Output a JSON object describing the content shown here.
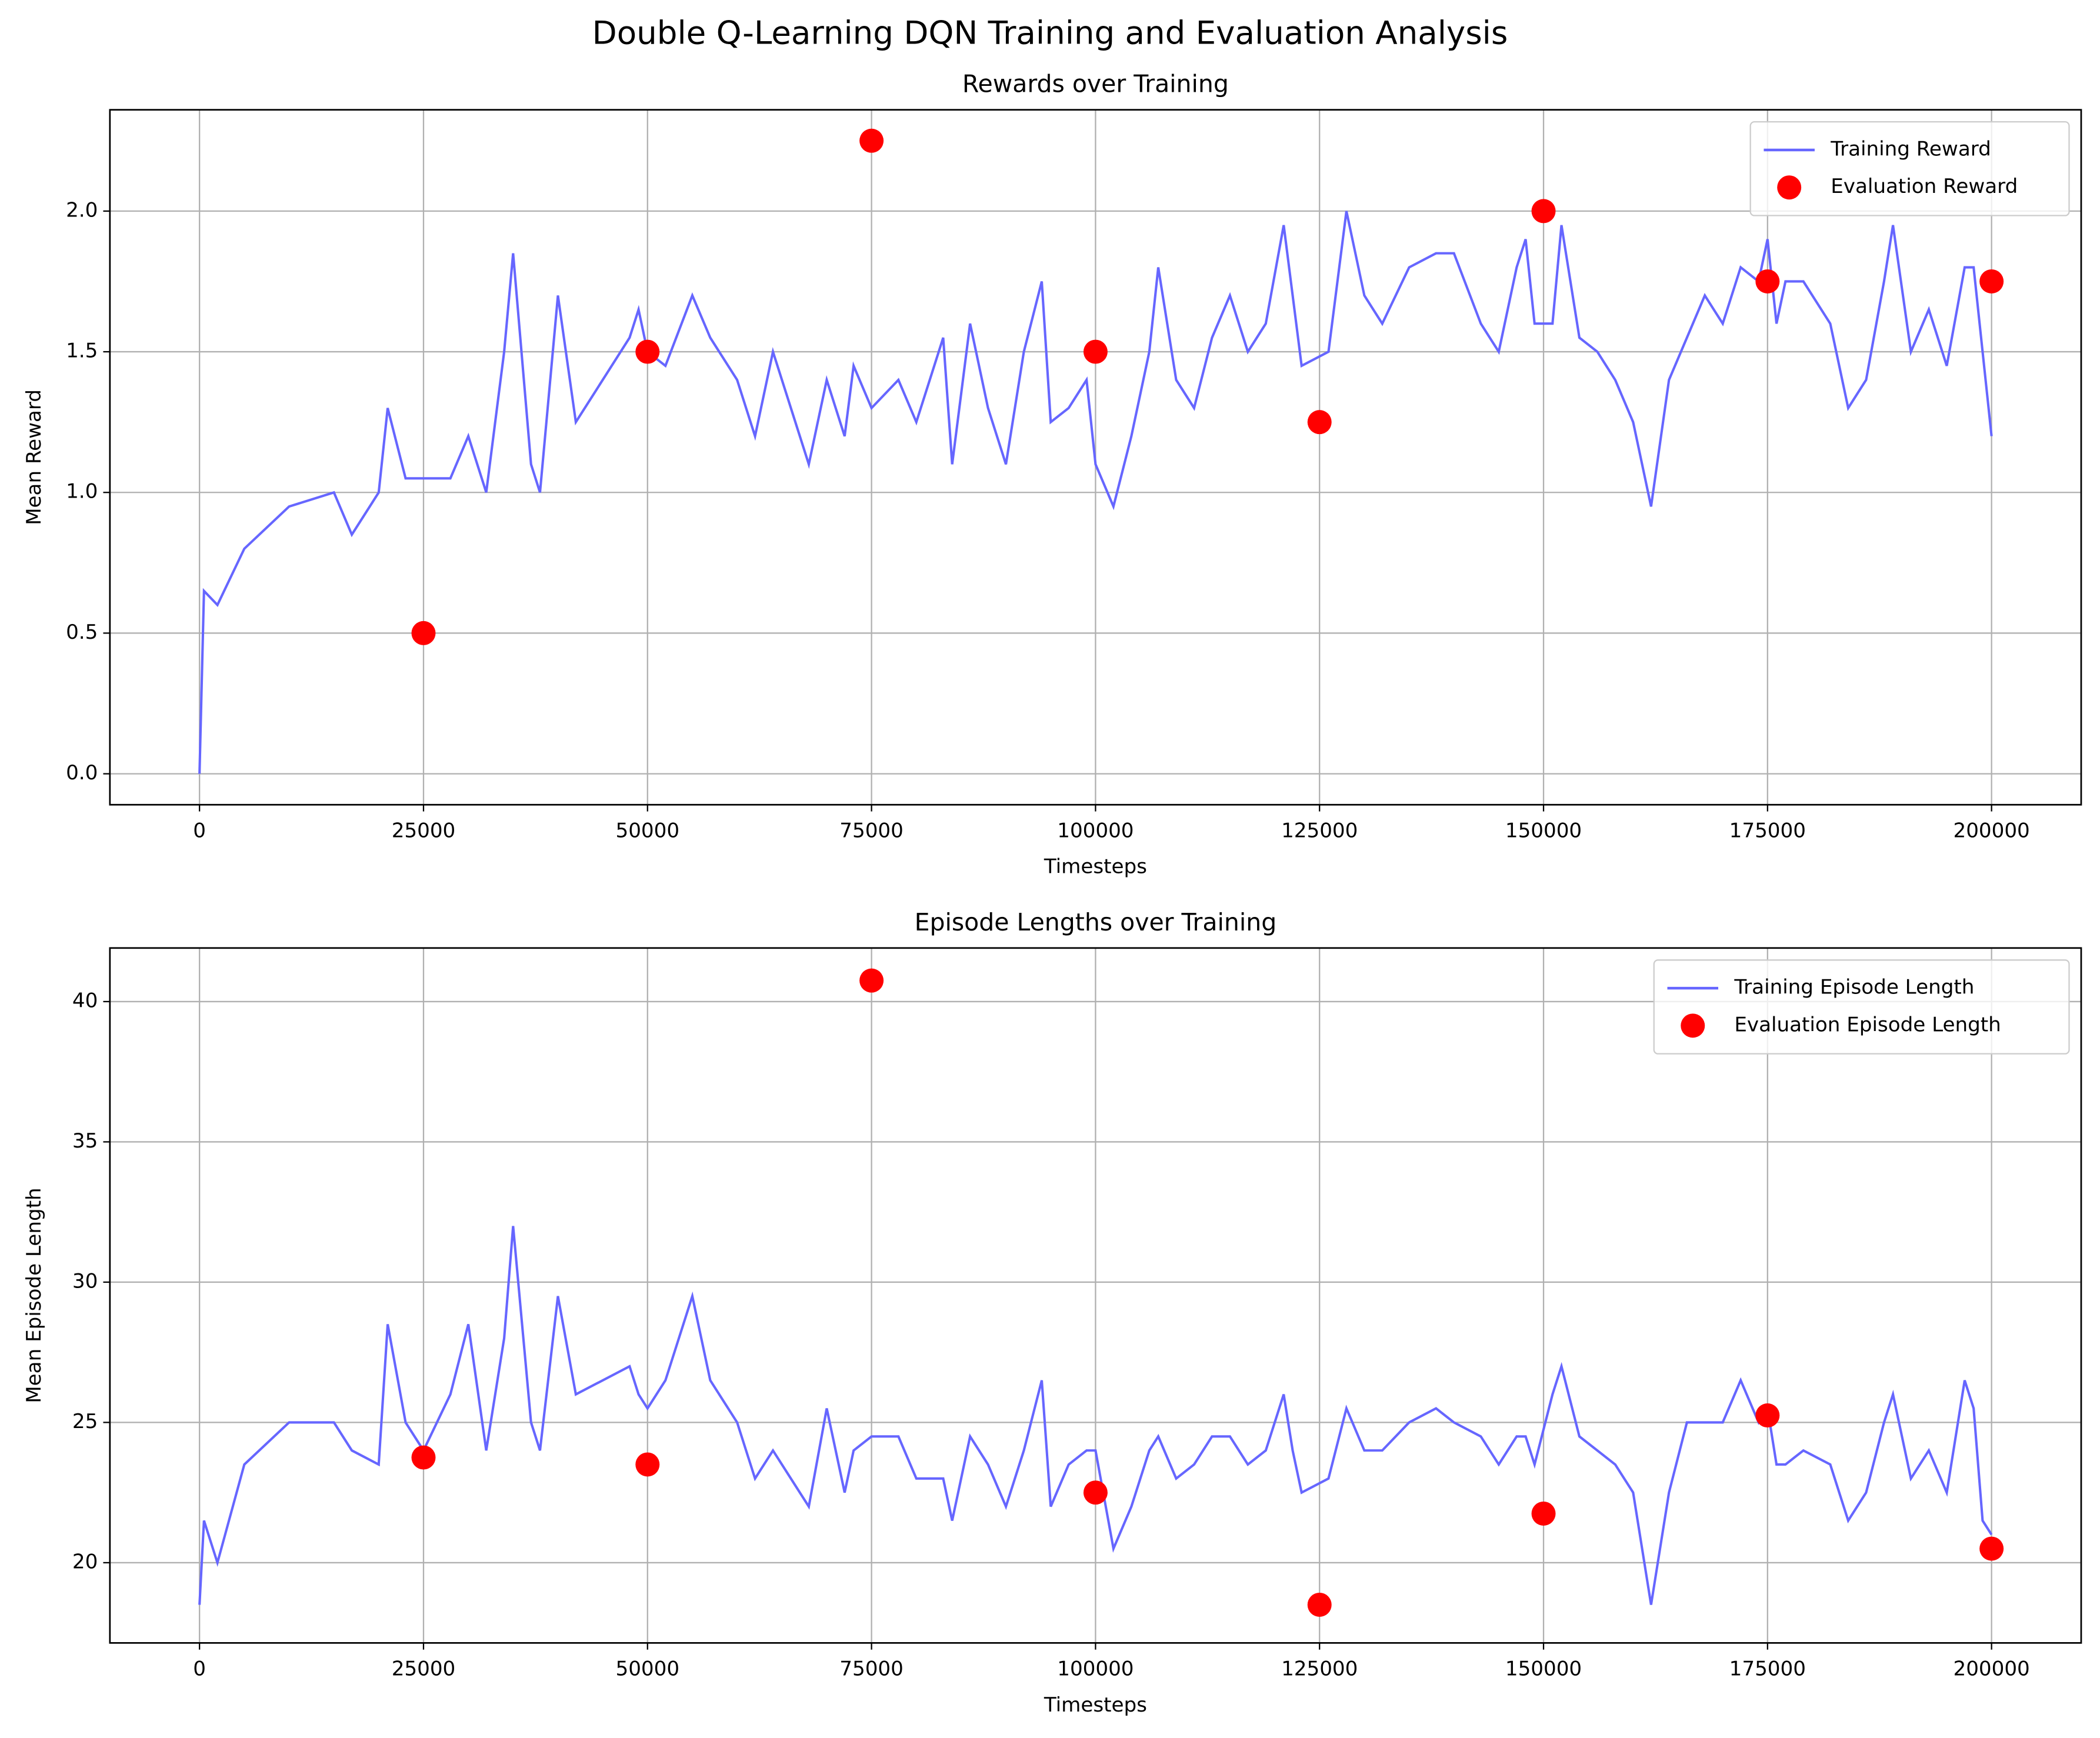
{
  "title": "Double Q-Learning DQN Training and Evaluation Analysis",
  "chart_data": [
    {
      "type": "line",
      "title": "Rewards over Training",
      "x_label": "Timesteps",
      "y_label": "Mean Reward",
      "xlim": [
        -10000,
        210000
      ],
      "ylim": [
        -0.11,
        2.36
      ],
      "xticks": [
        0,
        25000,
        50000,
        75000,
        100000,
        125000,
        150000,
        175000,
        200000
      ],
      "yticks": [
        {
          "value": 0,
          "label": "0.0"
        },
        0.5,
        {
          "value": 1,
          "label": "1.0"
        },
        1.5,
        {
          "value": 2,
          "label": "2.0"
        }
      ],
      "grid": true,
      "legend": "upper right",
      "series": [
        {
          "name": "Training Reward",
          "type": "line",
          "color": "#6666ff",
          "x": [
            0,
            500,
            2000,
            5000,
            10000,
            15000,
            17000,
            20000,
            21000,
            23000,
            25000,
            28000,
            30000,
            32000,
            34000,
            35000,
            37000,
            38000,
            40000,
            42000,
            45000,
            48000,
            49000,
            50000,
            52000,
            55000,
            57000,
            60000,
            62000,
            64000,
            66000,
            68000,
            70000,
            72000,
            73000,
            75000,
            78000,
            80000,
            83000,
            84000,
            86000,
            88000,
            90000,
            92000,
            94000,
            95000,
            97000,
            99000,
            100000,
            102000,
            104000,
            106000,
            107000,
            109000,
            111000,
            113000,
            115000,
            117000,
            119000,
            121000,
            122000,
            123000,
            126000,
            128000,
            130000,
            132000,
            135000,
            138000,
            140000,
            143000,
            145000,
            147000,
            148000,
            149000,
            151000,
            152000,
            154000,
            156000,
            158000,
            160000,
            162000,
            164000,
            166000,
            168000,
            170000,
            172000,
            174000,
            175000,
            176000,
            177000,
            179000,
            182000,
            184000,
            186000,
            188000,
            189000,
            191000,
            193000,
            195000,
            197000,
            198000,
            199000,
            200000
          ],
          "values": [
            0,
            0.65,
            0.6,
            0.8,
            0.95,
            1.0,
            0.85,
            1.0,
            1.3,
            1.05,
            1.05,
            1.05,
            1.2,
            1.0,
            1.5,
            1.85,
            1.1,
            1.0,
            1.7,
            1.25,
            1.4,
            1.55,
            1.65,
            1.5,
            1.45,
            1.7,
            1.55,
            1.4,
            1.2,
            1.5,
            1.3,
            1.1,
            1.4,
            1.2,
            1.45,
            1.3,
            1.4,
            1.25,
            1.55,
            1.1,
            1.6,
            1.3,
            1.1,
            1.5,
            1.75,
            1.25,
            1.3,
            1.4,
            1.1,
            0.95,
            1.2,
            1.5,
            1.8,
            1.4,
            1.3,
            1.55,
            1.7,
            1.5,
            1.6,
            1.95,
            1.7,
            1.45,
            1.5,
            2.0,
            1.7,
            1.6,
            1.8,
            1.85,
            1.85,
            1.6,
            1.5,
            1.8,
            1.9,
            1.6,
            1.6,
            1.95,
            1.55,
            1.5,
            1.4,
            1.25,
            0.95,
            1.4,
            1.55,
            1.7,
            1.6,
            1.8,
            1.75,
            1.9,
            1.6,
            1.75,
            1.75,
            1.6,
            1.3,
            1.4,
            1.75,
            1.95,
            1.5,
            1.65,
            1.45,
            1.8,
            1.8,
            1.5,
            1.2
          ]
        },
        {
          "name": "Evaluation Reward",
          "type": "scatter",
          "color": "#ff0000",
          "x": [
            25000,
            50000,
            75000,
            100000,
            125000,
            150000,
            175000,
            200000
          ],
          "values": [
            0.5,
            1.5,
            2.25,
            1.5,
            1.25,
            2.0,
            1.75,
            1.75
          ]
        }
      ]
    },
    {
      "type": "line",
      "title": "Episode Lengths over Training",
      "x_label": "Timesteps",
      "y_label": "Mean Episode Length",
      "xlim": [
        -10000,
        210000
      ],
      "ylim": [
        17.14,
        41.91
      ],
      "xticks": [
        0,
        25000,
        50000,
        75000,
        100000,
        125000,
        150000,
        175000,
        200000
      ],
      "yticks": [
        20,
        25,
        30,
        35,
        40
      ],
      "grid": true,
      "legend": "upper right",
      "series": [
        {
          "name": "Training Episode Length",
          "type": "line",
          "color": "#6666ff",
          "x": [
            0,
            500,
            2000,
            5000,
            10000,
            15000,
            17000,
            20000,
            21000,
            23000,
            25000,
            28000,
            30000,
            32000,
            34000,
            35000,
            37000,
            38000,
            40000,
            42000,
            45000,
            48000,
            49000,
            50000,
            52000,
            55000,
            57000,
            60000,
            62000,
            64000,
            66000,
            68000,
            70000,
            72000,
            73000,
            75000,
            78000,
            80000,
            83000,
            84000,
            86000,
            88000,
            90000,
            92000,
            94000,
            95000,
            97000,
            99000,
            100000,
            102000,
            104000,
            106000,
            107000,
            109000,
            111000,
            113000,
            115000,
            117000,
            119000,
            121000,
            122000,
            123000,
            126000,
            128000,
            130000,
            132000,
            135000,
            138000,
            140000,
            143000,
            145000,
            147000,
            148000,
            149000,
            151000,
            152000,
            154000,
            156000,
            158000,
            160000,
            162000,
            164000,
            166000,
            168000,
            170000,
            172000,
            174000,
            175000,
            176000,
            177000,
            179000,
            182000,
            184000,
            186000,
            188000,
            189000,
            191000,
            193000,
            195000,
            197000,
            198000,
            199000,
            200000
          ],
          "values": [
            18.5,
            21.5,
            20,
            23.5,
            25,
            25,
            24,
            23.5,
            28.5,
            25,
            24,
            26,
            28.5,
            24,
            28,
            32,
            25,
            24,
            29.5,
            26,
            26.5,
            27,
            26,
            25.5,
            26.5,
            29.5,
            26.5,
            25,
            23,
            24,
            23,
            22,
            25.5,
            22.5,
            24,
            24.5,
            24.5,
            23,
            23,
            21.5,
            24.5,
            23.5,
            22,
            24,
            26.5,
            22,
            23.5,
            24,
            24,
            20.5,
            22,
            24,
            24.5,
            23,
            23.5,
            24.5,
            24.5,
            23.5,
            24,
            26,
            24,
            22.5,
            23,
            25.5,
            24,
            24,
            25,
            25.5,
            25,
            24.5,
            23.5,
            24.5,
            24.5,
            23.5,
            26,
            27,
            24.5,
            24,
            23.5,
            22.5,
            18.5,
            22.5,
            25,
            25,
            25,
            26.5,
            25,
            25.5,
            23.5,
            23.5,
            24,
            23.5,
            21.5,
            22.5,
            25,
            26,
            23,
            24,
            22.5,
            26.5,
            25.5,
            21.5,
            21
          ]
        },
        {
          "name": "Evaluation Episode Length",
          "type": "scatter",
          "color": "#ff0000",
          "x": [
            25000,
            50000,
            75000,
            100000,
            125000,
            150000,
            175000,
            200000
          ],
          "values": [
            23.75,
            23.5,
            40.75,
            22.5,
            18.5,
            21.75,
            25.25,
            20.5
          ]
        }
      ]
    }
  ]
}
